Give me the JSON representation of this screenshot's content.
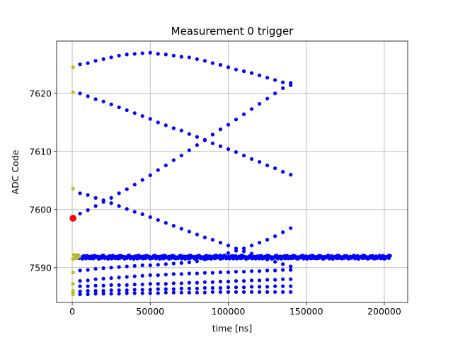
{
  "chart_data": {
    "type": "scatter",
    "title": "Measurement 0 trigger",
    "xlabel": "time [ns]",
    "ylabel": "ADC Code",
    "xlim": [
      -10000,
      215000
    ],
    "ylim": [
      7584,
      7629
    ],
    "xticks": [
      0,
      50000,
      100000,
      150000,
      200000
    ],
    "xtick_labels": [
      "0",
      "50000",
      "100000",
      "150000",
      "200000"
    ],
    "yticks": [
      7590,
      7600,
      7610,
      7620
    ],
    "ytick_labels": [
      "7590",
      "7600",
      "7610",
      "7620"
    ],
    "grid": true,
    "colors": {
      "blue": "#0000ff",
      "olive": "#bcbd22",
      "red": "#ff0000",
      "grid": "#b0b0b0"
    },
    "series": [
      {
        "color": "#0000ff",
        "marker_size": "small",
        "groups": [
          {
            "x_start": 5000,
            "x_end": 140000,
            "x_step": 5000,
            "y": [
              7625.0,
              7625.2,
              7625.6,
              7625.9,
              7626.2,
              7626.5,
              7626.7,
              7626.8,
              7626.9,
              7627.0,
              7626.8,
              7626.7,
              7626.5,
              7626.3,
              7626.2,
              7625.9,
              7625.6,
              7625.2,
              7624.9,
              7624.5,
              7624.1,
              7623.8,
              7623.5,
              7623.1,
              7622.7,
              7622.3,
              7621.9,
              7621.4
            ]
          },
          {
            "x_start": 5000,
            "x_end": 140000,
            "x_step": 5000,
            "y": [
              7620.0,
              7619.5,
              7619.0,
              7618.6,
              7618.1,
              7617.6,
              7617.1,
              7616.6,
              7616.1,
              7615.6,
              7615.0,
              7614.5,
              7614.0,
              7613.6,
              7613.0,
              7612.5,
              7611.9,
              7611.4,
              7610.9,
              7610.4,
              7609.9,
              7609.3,
              7608.7,
              7608.2,
              7607.6,
              7607.1,
              7606.5,
              7606.0
            ]
          },
          {
            "x_start": 5000,
            "x_end": 140000,
            "x_step": 5000,
            "y": [
              7599.3,
              7599.9,
              7600.6,
              7601.3,
              7602.0,
              7602.8,
              7603.5,
              7604.3,
              7605.1,
              7605.9,
              7606.8,
              7607.6,
              7608.5,
              7609.3,
              7610.2,
              7611.1,
              7612.0,
              7612.9,
              7613.8,
              7614.6,
              7615.5,
              7616.4,
              7617.3,
              7618.2,
              7619.1,
              7620.0,
              7620.9,
              7621.8
            ]
          },
          {
            "x_start": 5000,
            "x_end": 140000,
            "x_step": 5000,
            "y": [
              7602.8,
              7602.5,
              7602.0,
              7601.6,
              7601.1,
              7600.6,
              7600.1,
              7599.6,
              7599.2,
              7598.7,
              7598.2,
              7597.7,
              7597.2,
              7596.7,
              7596.2,
              7595.7,
              7595.2,
              7594.8,
              7594.3,
              7593.8,
              7593.3,
              7592.8,
              7592.4,
              7591.9,
              7591.4,
              7591.0,
              7590.6,
              7590.2
            ]
          },
          {
            "x_start": 5000,
            "x_end": 140000,
            "x_step": 5000,
            "y": [
              7589.5,
              7589.6,
              7589.8,
              7589.9,
              7590.0,
              7590.1,
              7590.2,
              7590.3,
              7590.4,
              7590.4,
              7590.5,
              7590.6,
              7590.7,
              7590.8,
              7590.9,
              7591.1,
              7591.4,
              7591.7,
              7592.1,
              7592.5,
              7592.9,
              7593.3,
              7593.8,
              7594.3,
              7594.8,
              7595.4,
              7596.1,
              7596.8
            ]
          },
          {
            "x_start": 5000,
            "x_end": 140000,
            "x_step": 5000,
            "y": [
              7587.7,
              7587.8,
              7588.0,
              7588.1,
              7588.2,
              7588.3,
              7588.4,
              7588.5,
              7588.6,
              7588.7,
              7588.7,
              7588.8,
              7588.9,
              7588.9,
              7589.0,
              7589.0,
              7589.1,
              7589.1,
              7589.2,
              7589.2,
              7589.3,
              7589.3,
              7589.4,
              7589.4,
              7589.5,
              7589.5,
              7589.6,
              7589.6
            ]
          },
          {
            "x_start": 5000,
            "x_end": 140000,
            "x_step": 5000,
            "y": [
              7586.8,
              7586.8,
              7586.9,
              7586.9,
              7587.0,
              7587.0,
              7587.0,
              7587.1,
              7587.1,
              7587.2,
              7587.2,
              7587.2,
              7587.3,
              7587.3,
              7587.4,
              7587.4,
              7587.5,
              7587.5,
              7587.6,
              7587.6,
              7587.7,
              7587.7,
              7587.8,
              7587.8,
              7587.9,
              7587.9,
              7588.0,
              7588.0
            ]
          },
          {
            "x_start": 5000,
            "x_end": 140000,
            "x_step": 5000,
            "y": [
              7585.9,
              7586.0,
              7586.0,
              7586.0,
              7586.1,
              7586.1,
              7586.1,
              7586.2,
              7586.2,
              7586.2,
              7586.3,
              7586.3,
              7586.3,
              7586.4,
              7586.4,
              7586.4,
              7586.5,
              7586.5,
              7586.5,
              7586.6,
              7586.6,
              7586.6,
              7586.7,
              7586.7,
              7586.7,
              7586.8,
              7586.8,
              7586.8
            ]
          },
          {
            "x_start": 5000,
            "x_end": 140000,
            "x_step": 5000,
            "y": [
              7585.4,
              7585.4,
              7585.5,
              7585.5,
              7585.5,
              7585.5,
              7585.6,
              7585.6,
              7585.6,
              7585.6,
              7585.6,
              7585.7,
              7585.7,
              7585.7,
              7585.7,
              7585.7,
              7585.7,
              7585.8,
              7585.8,
              7585.8,
              7585.8,
              7585.8,
              7585.8,
              7585.8,
              7585.8,
              7585.8,
              7585.8,
              7585.8
            ]
          }
        ],
        "band": {
          "x_start": 2000,
          "x_end": 204000,
          "x_step": 1500,
          "y_center": 7591.8,
          "y_spread": 0.5
        }
      },
      {
        "color": "#bcbd22",
        "marker_size": "small",
        "points": [
          [
            500,
            7624.5
          ],
          [
            500,
            7620.2
          ],
          [
            500,
            7603.6
          ],
          [
            1000,
            7592.2
          ],
          [
            500,
            7591.5
          ],
          [
            500,
            7589.2
          ],
          [
            500,
            7587.2
          ],
          [
            500,
            7585.7
          ],
          [
            500,
            7585.4
          ],
          [
            500,
            7586.0
          ],
          [
            2000,
            7592.0
          ],
          [
            3000,
            7591.7
          ],
          [
            4000,
            7592.1
          ],
          [
            4500,
            7591.9
          ],
          [
            1500,
            7591.6
          ]
        ]
      },
      {
        "color": "#ff0000",
        "marker_size": "large",
        "points": [
          [
            500,
            7598.5
          ]
        ]
      }
    ]
  }
}
